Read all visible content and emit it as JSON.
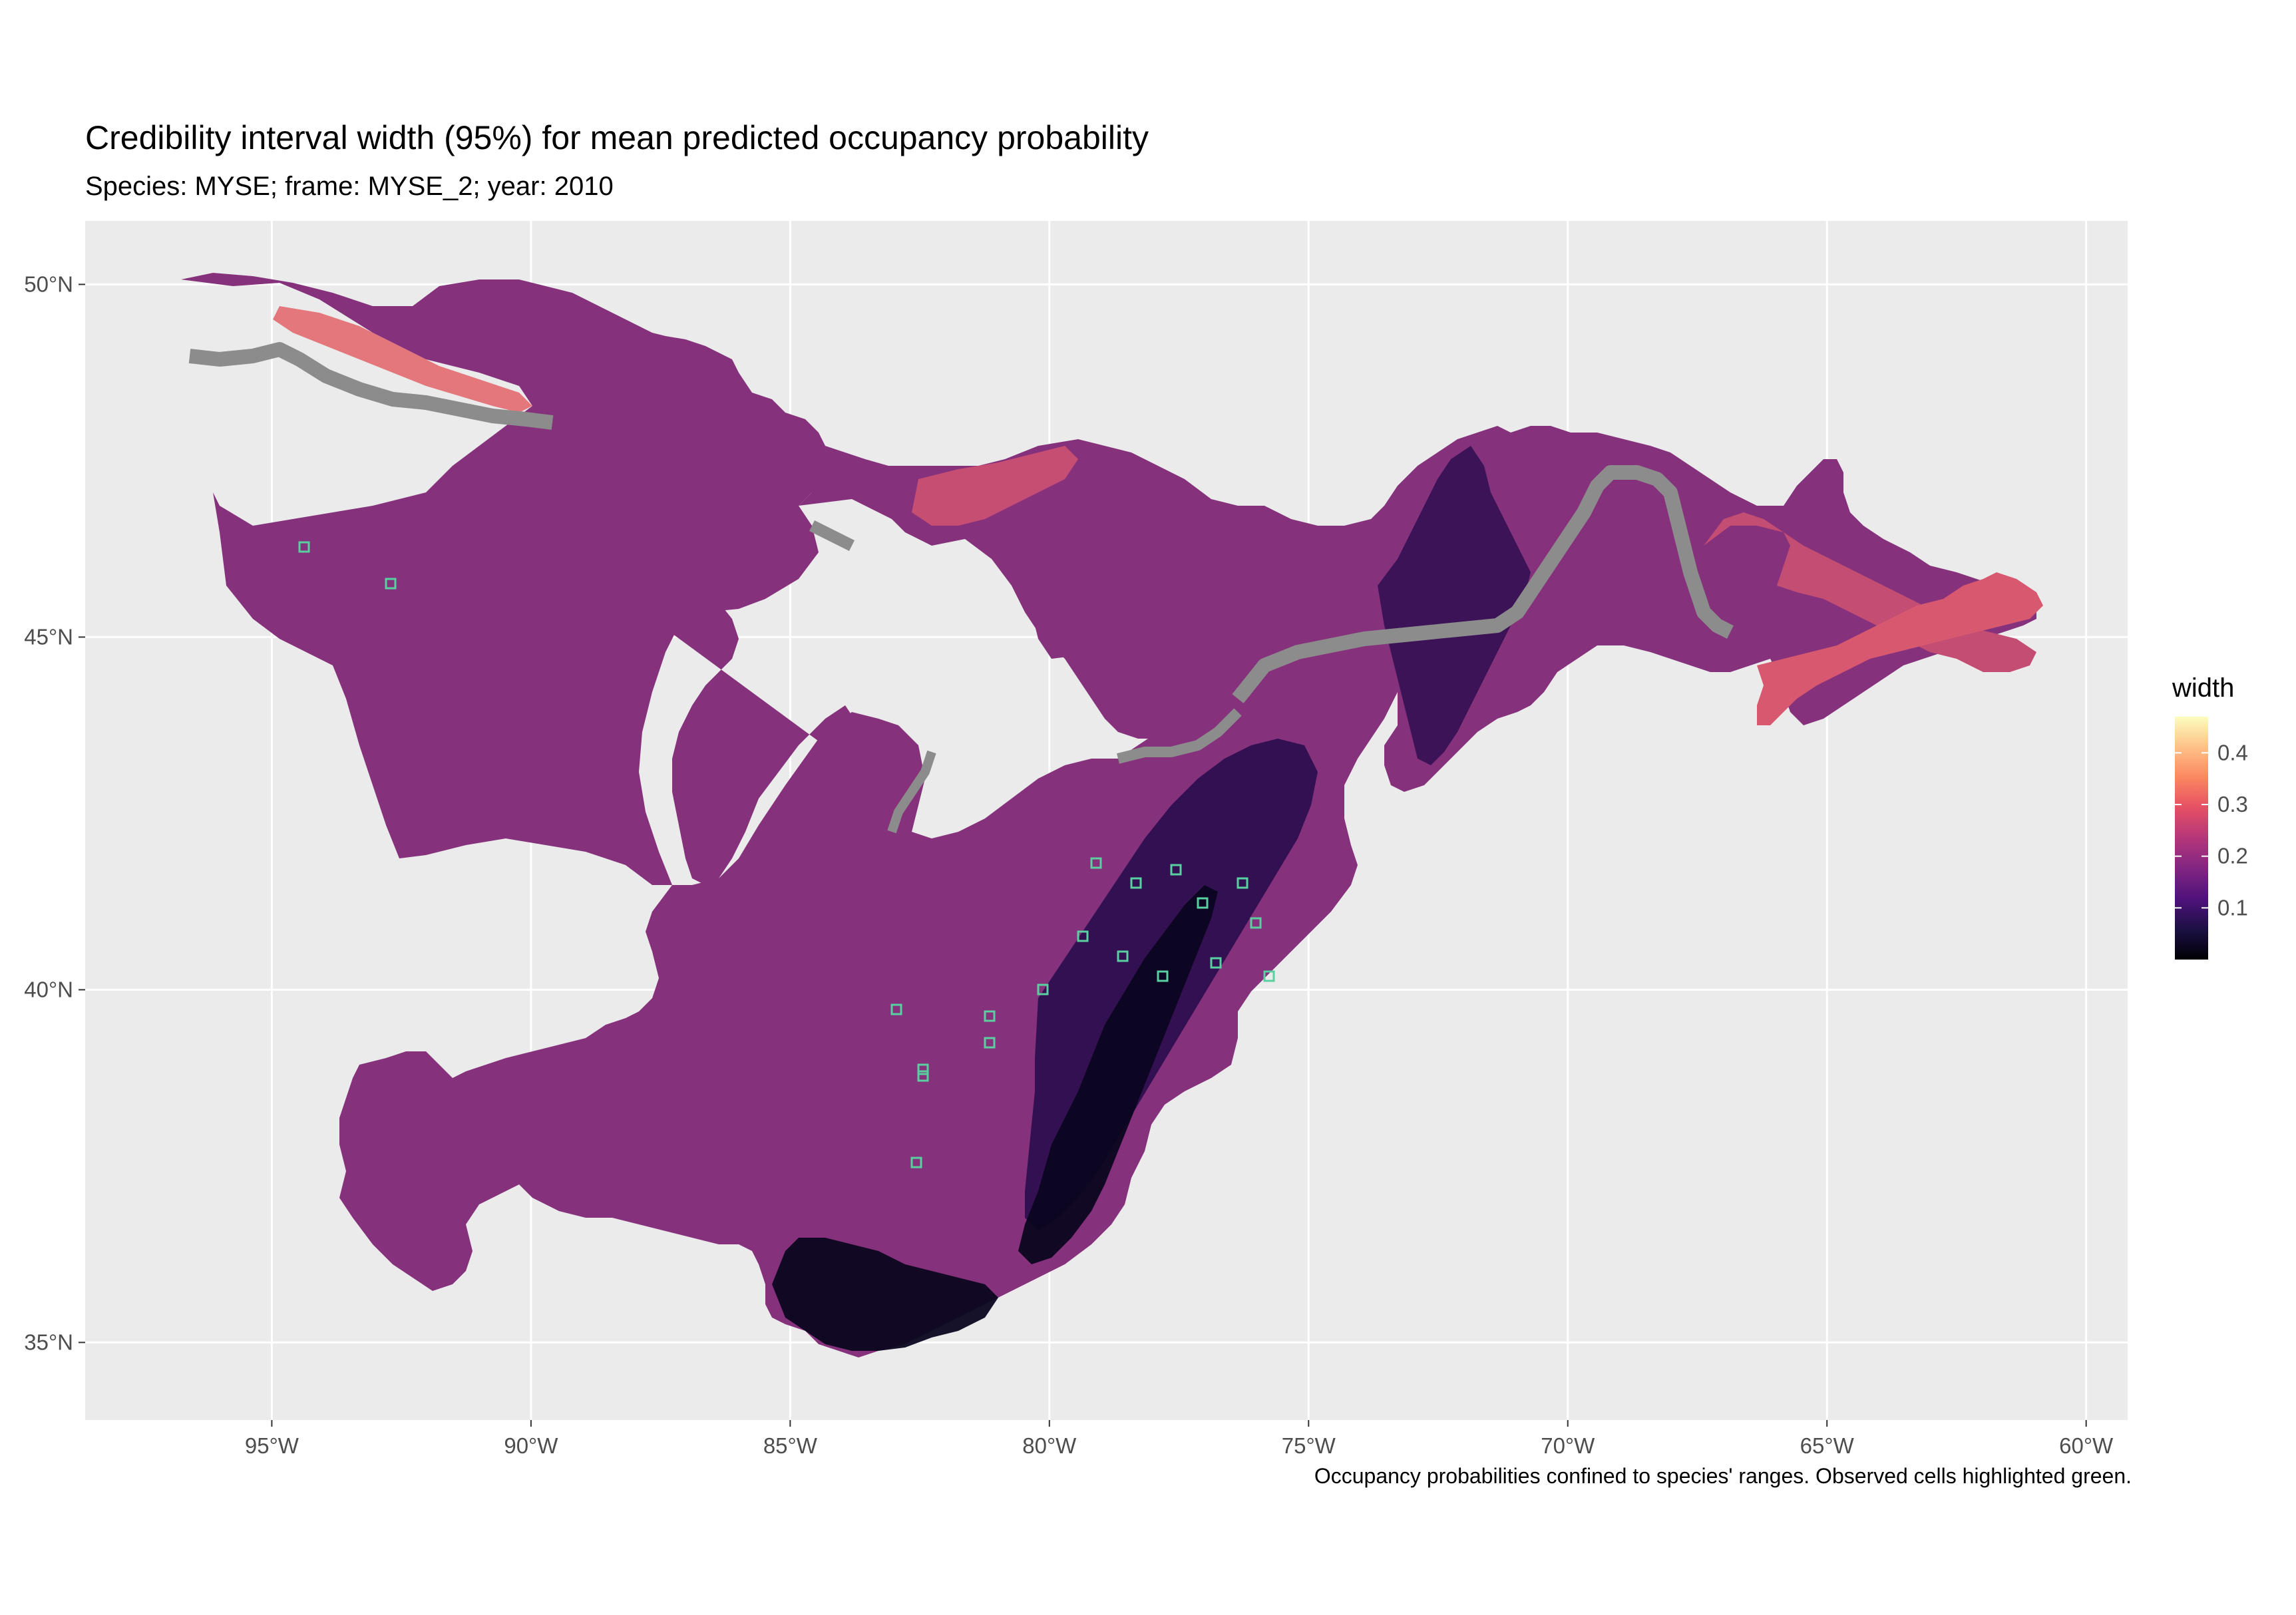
{
  "title": "Credibility interval width (95%) for mean predicted occupancy probability",
  "subtitle": "Species: MYSE; frame: MYSE_2; year: 2010",
  "caption": "Occupancy probabilities confined to species' ranges. Observed cells highlighted green.",
  "map": {
    "lon_ticks": [
      {
        "value": -95,
        "label": "95°W"
      },
      {
        "value": -90,
        "label": "90°W"
      },
      {
        "value": -85,
        "label": "85°W"
      },
      {
        "value": -80,
        "label": "80°W"
      },
      {
        "value": -75,
        "label": "75°W"
      },
      {
        "value": -70,
        "label": "70°W"
      },
      {
        "value": -65,
        "label": "65°W"
      },
      {
        "value": -60,
        "label": "60°W"
      }
    ],
    "lat_ticks": [
      {
        "value": 50,
        "label": "50°N"
      },
      {
        "value": 45,
        "label": "45°N"
      },
      {
        "value": 40,
        "label": "40°N"
      },
      {
        "value": 35,
        "label": "35°N"
      }
    ],
    "lon_range": [
      -98.6,
      -59.2
    ],
    "lat_range": [
      33.9,
      50.9
    ],
    "panel_background": "#ebebeb",
    "grid_color": "#ffffff"
  },
  "legend": {
    "title": "width",
    "ticks": [
      {
        "value": 0.1,
        "label": "0.1"
      },
      {
        "value": 0.2,
        "label": "0.2"
      },
      {
        "value": 0.3,
        "label": "0.3"
      },
      {
        "value": 0.4,
        "label": "0.4"
      }
    ],
    "range": [
      0.0,
      0.47
    ],
    "palette": [
      "#000004",
      "#1c1044",
      "#4f127b",
      "#812581",
      "#b5367a",
      "#e55064",
      "#fb8761",
      "#fec287",
      "#fcfdbf"
    ]
  },
  "colors": {
    "range_fill": "#86317c",
    "low_fill": "#2a0d4e",
    "very_low_fill": "#0b0620",
    "high_fill": "#d9526e",
    "shoreline_fill": "#f59070",
    "observed_outline": "#58d0a0",
    "masked_grey": "#8c8c8c"
  }
}
